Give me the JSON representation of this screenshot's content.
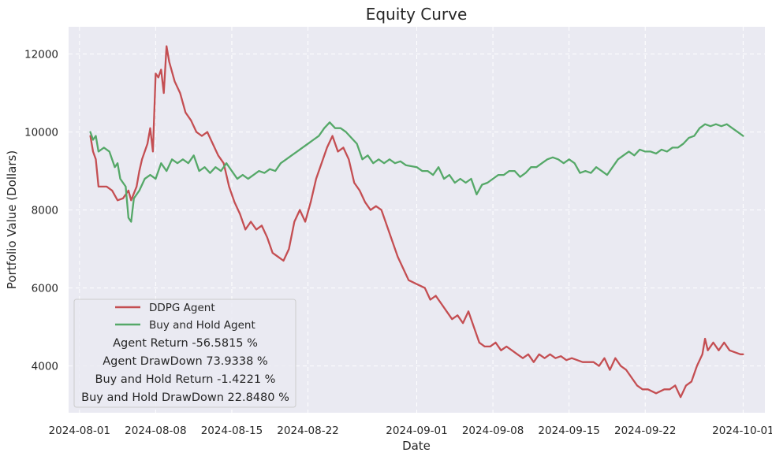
{
  "chart_data": {
    "type": "line",
    "title": "Equity Curve",
    "xlabel": "Date",
    "ylabel": "Portfolio Value (Dollars)",
    "x_ticks": [
      "2024-08-01",
      "2024-08-08",
      "2024-08-15",
      "2024-08-22",
      "2024-09-01",
      "2024-09-08",
      "2024-09-15",
      "2024-09-22",
      "2024-10-01"
    ],
    "y_ticks": [
      4000,
      6000,
      8000,
      10000,
      12000
    ],
    "xlim": [
      "2023-12-31T00:00",
      "2024-10-03T00:00"
    ],
    "ylim": [
      2800,
      12700
    ],
    "grid": true,
    "legend_position": "bottom-left",
    "colors": {
      "DDPG Agent": "#c44e52",
      "Buy and Hold Agent": "#55a868",
      "background": "#eaeaf2"
    },
    "series": [
      {
        "name": "DDPG Agent",
        "color": "#c44e52",
        "points": [
          [
            "2024-08-02T00:00",
            9900
          ],
          [
            "2024-08-02T06:00",
            9500
          ],
          [
            "2024-08-02T12:00",
            9300
          ],
          [
            "2024-08-02T18:00",
            8600
          ],
          [
            "2024-08-03T12:00",
            8600
          ],
          [
            "2024-08-04T00:00",
            8500
          ],
          [
            "2024-08-04T12:00",
            8250
          ],
          [
            "2024-08-05T00:00",
            8300
          ],
          [
            "2024-08-05T12:00",
            8500
          ],
          [
            "2024-08-05T18:00",
            8250
          ],
          [
            "2024-08-06T06:00",
            8600
          ],
          [
            "2024-08-06T12:00",
            9000
          ],
          [
            "2024-08-06T18:00",
            9300
          ],
          [
            "2024-08-07T06:00",
            9700
          ],
          [
            "2024-08-07T12:00",
            10100
          ],
          [
            "2024-08-07T18:00",
            9500
          ],
          [
            "2024-08-08T00:00",
            11500
          ],
          [
            "2024-08-08T06:00",
            11400
          ],
          [
            "2024-08-08T12:00",
            11600
          ],
          [
            "2024-08-08T18:00",
            11000
          ],
          [
            "2024-08-09T00:00",
            12200
          ],
          [
            "2024-08-09T06:00",
            11800
          ],
          [
            "2024-08-09T18:00",
            11300
          ],
          [
            "2024-08-10T06:00",
            11000
          ],
          [
            "2024-08-10T18:00",
            10500
          ],
          [
            "2024-08-11T06:00",
            10300
          ],
          [
            "2024-08-11T18:00",
            10000
          ],
          [
            "2024-08-12T06:00",
            9900
          ],
          [
            "2024-08-12T18:00",
            10000
          ],
          [
            "2024-08-13T06:00",
            9700
          ],
          [
            "2024-08-13T18:00",
            9400
          ],
          [
            "2024-08-14T06:00",
            9200
          ],
          [
            "2024-08-14T12:00",
            8900
          ],
          [
            "2024-08-14T18:00",
            8600
          ],
          [
            "2024-08-15T06:00",
            8200
          ],
          [
            "2024-08-15T18:00",
            7900
          ],
          [
            "2024-08-16T06:00",
            7500
          ],
          [
            "2024-08-16T18:00",
            7700
          ],
          [
            "2024-08-17T06:00",
            7500
          ],
          [
            "2024-08-17T18:00",
            7600
          ],
          [
            "2024-08-18T06:00",
            7300
          ],
          [
            "2024-08-18T18:00",
            6900
          ],
          [
            "2024-08-19T06:00",
            6800
          ],
          [
            "2024-08-19T18:00",
            6700
          ],
          [
            "2024-08-20T06:00",
            7000
          ],
          [
            "2024-08-20T18:00",
            7700
          ],
          [
            "2024-08-21T06:00",
            8000
          ],
          [
            "2024-08-21T18:00",
            7700
          ],
          [
            "2024-08-22T06:00",
            8200
          ],
          [
            "2024-08-22T18:00",
            8800
          ],
          [
            "2024-08-23T06:00",
            9200
          ],
          [
            "2024-08-23T18:00",
            9600
          ],
          [
            "2024-08-24T06:00",
            9900
          ],
          [
            "2024-08-24T18:00",
            9500
          ],
          [
            "2024-08-25T06:00",
            9600
          ],
          [
            "2024-08-25T18:00",
            9300
          ],
          [
            "2024-08-26T06:00",
            8700
          ],
          [
            "2024-08-26T18:00",
            8500
          ],
          [
            "2024-08-27T06:00",
            8200
          ],
          [
            "2024-08-27T18:00",
            8000
          ],
          [
            "2024-08-28T06:00",
            8100
          ],
          [
            "2024-08-28T18:00",
            8000
          ],
          [
            "2024-08-29T06:00",
            7600
          ],
          [
            "2024-08-29T18:00",
            7200
          ],
          [
            "2024-08-30T06:00",
            6800
          ],
          [
            "2024-08-30T18:00",
            6500
          ],
          [
            "2024-08-31T06:00",
            6200
          ],
          [
            "2024-09-01T00:00",
            6100
          ],
          [
            "2024-09-01T18:00",
            6000
          ],
          [
            "2024-09-02T06:00",
            5700
          ],
          [
            "2024-09-02T18:00",
            5800
          ],
          [
            "2024-09-03T06:00",
            5600
          ],
          [
            "2024-09-03T18:00",
            5400
          ],
          [
            "2024-09-04T06:00",
            5200
          ],
          [
            "2024-09-04T18:00",
            5300
          ],
          [
            "2024-09-05T06:00",
            5100
          ],
          [
            "2024-09-05T18:00",
            5400
          ],
          [
            "2024-09-06T06:00",
            5000
          ],
          [
            "2024-09-06T18:00",
            4600
          ],
          [
            "2024-09-07T06:00",
            4500
          ],
          [
            "2024-09-07T18:00",
            4500
          ],
          [
            "2024-09-08T06:00",
            4600
          ],
          [
            "2024-09-08T18:00",
            4400
          ],
          [
            "2024-09-09T06:00",
            4500
          ],
          [
            "2024-09-09T18:00",
            4400
          ],
          [
            "2024-09-10T06:00",
            4300
          ],
          [
            "2024-09-10T18:00",
            4200
          ],
          [
            "2024-09-11T06:00",
            4300
          ],
          [
            "2024-09-11T18:00",
            4100
          ],
          [
            "2024-09-12T06:00",
            4300
          ],
          [
            "2024-09-12T18:00",
            4200
          ],
          [
            "2024-09-13T06:00",
            4300
          ],
          [
            "2024-09-13T18:00",
            4200
          ],
          [
            "2024-09-14T06:00",
            4250
          ],
          [
            "2024-09-14T18:00",
            4150
          ],
          [
            "2024-09-15T06:00",
            4200
          ],
          [
            "2024-09-15T18:00",
            4150
          ],
          [
            "2024-09-16T06:00",
            4100
          ],
          [
            "2024-09-17T06:00",
            4100
          ],
          [
            "2024-09-17T18:00",
            4000
          ],
          [
            "2024-09-18T06:00",
            4200
          ],
          [
            "2024-09-18T18:00",
            3900
          ],
          [
            "2024-09-19T06:00",
            4200
          ],
          [
            "2024-09-19T18:00",
            4000
          ],
          [
            "2024-09-20T06:00",
            3900
          ],
          [
            "2024-09-20T18:00",
            3700
          ],
          [
            "2024-09-21T06:00",
            3500
          ],
          [
            "2024-09-21T18:00",
            3400
          ],
          [
            "2024-09-22T06:00",
            3400
          ],
          [
            "2024-09-23T00:00",
            3300
          ],
          [
            "2024-09-23T18:00",
            3400
          ],
          [
            "2024-09-24T06:00",
            3400
          ],
          [
            "2024-09-24T18:00",
            3500
          ],
          [
            "2024-09-25T06:00",
            3200
          ],
          [
            "2024-09-25T18:00",
            3500
          ],
          [
            "2024-09-26T06:00",
            3600
          ],
          [
            "2024-09-26T18:00",
            4000
          ],
          [
            "2024-09-27T06:00",
            4300
          ],
          [
            "2024-09-27T12:00",
            4700
          ],
          [
            "2024-09-27T18:00",
            4400
          ],
          [
            "2024-09-28T06:00",
            4600
          ],
          [
            "2024-09-28T18:00",
            4400
          ],
          [
            "2024-09-29T06:00",
            4600
          ],
          [
            "2024-09-29T18:00",
            4400
          ],
          [
            "2024-09-30T06:00",
            4350
          ],
          [
            "2024-09-30T18:00",
            4300
          ],
          [
            "2024-10-01T00:00",
            4300
          ]
        ]
      },
      {
        "name": "Buy and Hold Agent",
        "color": "#55a868",
        "points": [
          [
            "2024-08-02T00:00",
            10000
          ],
          [
            "2024-08-02T06:00",
            9800
          ],
          [
            "2024-08-02T12:00",
            9900
          ],
          [
            "2024-08-02T18:00",
            9500
          ],
          [
            "2024-08-03T06:00",
            9600
          ],
          [
            "2024-08-03T18:00",
            9500
          ],
          [
            "2024-08-04T06:00",
            9100
          ],
          [
            "2024-08-04T12:00",
            9200
          ],
          [
            "2024-08-04T18:00",
            8800
          ],
          [
            "2024-08-05T06:00",
            8600
          ],
          [
            "2024-08-05T12:00",
            7800
          ],
          [
            "2024-08-05T18:00",
            7700
          ],
          [
            "2024-08-06T00:00",
            8300
          ],
          [
            "2024-08-06T12:00",
            8500
          ],
          [
            "2024-08-07T00:00",
            8800
          ],
          [
            "2024-08-07T12:00",
            8900
          ],
          [
            "2024-08-08T00:00",
            8800
          ],
          [
            "2024-08-08T12:00",
            9200
          ],
          [
            "2024-08-09T00:00",
            9000
          ],
          [
            "2024-08-09T12:00",
            9300
          ],
          [
            "2024-08-10T00:00",
            9200
          ],
          [
            "2024-08-10T12:00",
            9300
          ],
          [
            "2024-08-11T00:00",
            9200
          ],
          [
            "2024-08-11T12:00",
            9400
          ],
          [
            "2024-08-12T00:00",
            9000
          ],
          [
            "2024-08-12T12:00",
            9100
          ],
          [
            "2024-08-13T00:00",
            8950
          ],
          [
            "2024-08-13T12:00",
            9100
          ],
          [
            "2024-08-14T00:00",
            9000
          ],
          [
            "2024-08-14T12:00",
            9200
          ],
          [
            "2024-08-15T00:00",
            9000
          ],
          [
            "2024-08-15T12:00",
            8800
          ],
          [
            "2024-08-16T00:00",
            8900
          ],
          [
            "2024-08-16T12:00",
            8800
          ],
          [
            "2024-08-17T00:00",
            8900
          ],
          [
            "2024-08-17T12:00",
            9000
          ],
          [
            "2024-08-18T00:00",
            8950
          ],
          [
            "2024-08-18T12:00",
            9050
          ],
          [
            "2024-08-19T00:00",
            9000
          ],
          [
            "2024-08-19T12:00",
            9200
          ],
          [
            "2024-08-20T00:00",
            9300
          ],
          [
            "2024-08-20T12:00",
            9400
          ],
          [
            "2024-08-21T00:00",
            9500
          ],
          [
            "2024-08-21T12:00",
            9600
          ],
          [
            "2024-08-22T00:00",
            9700
          ],
          [
            "2024-08-22T12:00",
            9800
          ],
          [
            "2024-08-23T00:00",
            9900
          ],
          [
            "2024-08-23T12:00",
            10100
          ],
          [
            "2024-08-24T00:00",
            10250
          ],
          [
            "2024-08-24T12:00",
            10100
          ],
          [
            "2024-08-25T00:00",
            10100
          ],
          [
            "2024-08-25T12:00",
            10000
          ],
          [
            "2024-08-26T00:00",
            9850
          ],
          [
            "2024-08-26T12:00",
            9700
          ],
          [
            "2024-08-27T00:00",
            9300
          ],
          [
            "2024-08-27T12:00",
            9400
          ],
          [
            "2024-08-28T00:00",
            9200
          ],
          [
            "2024-08-28T12:00",
            9300
          ],
          [
            "2024-08-29T00:00",
            9200
          ],
          [
            "2024-08-29T12:00",
            9300
          ],
          [
            "2024-08-30T00:00",
            9200
          ],
          [
            "2024-08-30T12:00",
            9250
          ],
          [
            "2024-08-31T00:00",
            9150
          ],
          [
            "2024-09-01T00:00",
            9100
          ],
          [
            "2024-09-01T12:00",
            9000
          ],
          [
            "2024-09-02T00:00",
            9000
          ],
          [
            "2024-09-02T12:00",
            8900
          ],
          [
            "2024-09-03T00:00",
            9100
          ],
          [
            "2024-09-03T12:00",
            8800
          ],
          [
            "2024-09-04T00:00",
            8900
          ],
          [
            "2024-09-04T12:00",
            8700
          ],
          [
            "2024-09-05T00:00",
            8800
          ],
          [
            "2024-09-05T12:00",
            8700
          ],
          [
            "2024-09-06T00:00",
            8800
          ],
          [
            "2024-09-06T12:00",
            8400
          ],
          [
            "2024-09-07T00:00",
            8650
          ],
          [
            "2024-09-07T12:00",
            8700
          ],
          [
            "2024-09-08T00:00",
            8800
          ],
          [
            "2024-09-08T12:00",
            8900
          ],
          [
            "2024-09-09T00:00",
            8900
          ],
          [
            "2024-09-09T12:00",
            9000
          ],
          [
            "2024-09-10T00:00",
            9000
          ],
          [
            "2024-09-10T12:00",
            8850
          ],
          [
            "2024-09-11T00:00",
            8950
          ],
          [
            "2024-09-11T12:00",
            9100
          ],
          [
            "2024-09-12T00:00",
            9100
          ],
          [
            "2024-09-12T12:00",
            9200
          ],
          [
            "2024-09-13T00:00",
            9300
          ],
          [
            "2024-09-13T12:00",
            9350
          ],
          [
            "2024-09-14T00:00",
            9300
          ],
          [
            "2024-09-14T12:00",
            9200
          ],
          [
            "2024-09-15T00:00",
            9300
          ],
          [
            "2024-09-15T12:00",
            9200
          ],
          [
            "2024-09-16T00:00",
            8950
          ],
          [
            "2024-09-16T12:00",
            9000
          ],
          [
            "2024-09-17T00:00",
            8950
          ],
          [
            "2024-09-17T12:00",
            9100
          ],
          [
            "2024-09-18T00:00",
            9000
          ],
          [
            "2024-09-18T12:00",
            8900
          ],
          [
            "2024-09-19T00:00",
            9100
          ],
          [
            "2024-09-19T12:00",
            9300
          ],
          [
            "2024-09-20T00:00",
            9400
          ],
          [
            "2024-09-20T12:00",
            9500
          ],
          [
            "2024-09-21T00:00",
            9400
          ],
          [
            "2024-09-21T12:00",
            9550
          ],
          [
            "2024-09-22T00:00",
            9500
          ],
          [
            "2024-09-22T12:00",
            9500
          ],
          [
            "2024-09-23T00:00",
            9450
          ],
          [
            "2024-09-23T12:00",
            9550
          ],
          [
            "2024-09-24T00:00",
            9500
          ],
          [
            "2024-09-24T12:00",
            9600
          ],
          [
            "2024-09-25T00:00",
            9600
          ],
          [
            "2024-09-25T12:00",
            9700
          ],
          [
            "2024-09-26T00:00",
            9850
          ],
          [
            "2024-09-26T12:00",
            9900
          ],
          [
            "2024-09-27T00:00",
            10100
          ],
          [
            "2024-09-27T12:00",
            10200
          ],
          [
            "2024-09-28T00:00",
            10150
          ],
          [
            "2024-09-28T12:00",
            10200
          ],
          [
            "2024-09-29T00:00",
            10150
          ],
          [
            "2024-09-29T12:00",
            10200
          ],
          [
            "2024-09-30T00:00",
            10100
          ],
          [
            "2024-09-30T12:00",
            10000
          ],
          [
            "2024-10-01T00:00",
            9900
          ]
        ]
      }
    ],
    "legend": {
      "entries": [
        "DDPG Agent",
        "Buy and Hold Agent"
      ],
      "stats": [
        "Agent Return -56.5815 %",
        "Agent DrawDown 73.9338 %",
        "Buy and Hold Return -1.4221 %",
        "Buy and Hold DrawDown 22.8480 %"
      ]
    }
  }
}
